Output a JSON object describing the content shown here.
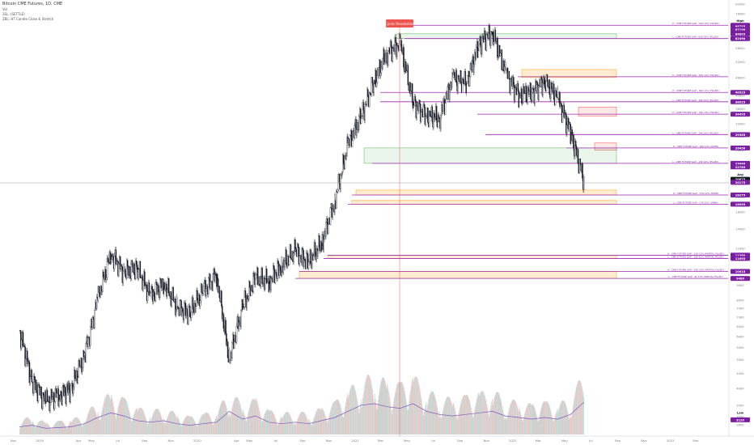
{
  "legend": {
    "title": "Bitcoin CME Futures, 1D, CME",
    "line2": "Vol",
    "line3": "3SL: (SETTLE)",
    "line4": "ZBL: HT Candle Close & Stretch"
  },
  "event_label": "Cycle Revelation",
  "chart_data": {
    "type": "line",
    "title": "Bitcoin CME Futures, 1D, CME",
    "y_scale": "log",
    "ylim": [
      3000,
      82000
    ],
    "x_ticks": [
      "Nov",
      "2019",
      "Apr",
      "May",
      "Jul",
      "Sep",
      "Nov",
      "2020",
      "Apr",
      "May",
      "Jul",
      "Sep",
      "Nov",
      "2021",
      "Mar",
      "May",
      "Jul",
      "Sep",
      "Nov",
      "2022",
      "Mar",
      "May",
      "Jul",
      "Sep",
      "Nov",
      "2023",
      "Mar"
    ],
    "y_ticks": [
      "82000",
      "76000",
      "70000",
      "64000",
      "58000",
      "52000",
      "46000",
      "40000",
      "36000",
      "32000",
      "29000",
      "26000",
      "23000",
      "20000",
      "18000",
      "16000",
      "14000",
      "12000",
      "11000",
      "10000",
      "9000",
      "8000",
      "7500",
      "7000",
      "6500",
      "6000",
      "5500",
      "5000",
      "4500",
      "4000",
      "3500",
      "3200",
      "3000"
    ],
    "price_tags": [
      "High",
      "69390",
      "68755",
      "67190",
      "65360",
      "64895",
      "62490",
      "40925",
      "38025",
      "34495",
      "29385",
      "26450",
      "23440",
      "22785",
      "Avg",
      "20675",
      "20175",
      "18275",
      "16995",
      "11380",
      "11095",
      "10015",
      "9480",
      "Low",
      "3120"
    ],
    "series": [
      {
        "name": "",
        "x": [
          "2018-11",
          "2018-12",
          "2019-01",
          "2019-02",
          "2019-03",
          "2019-04",
          "2019-05",
          "2019-06",
          "2019-07",
          "2019-08",
          "2019-09",
          "2019-10",
          "2019-11",
          "2019-12",
          "2020-01",
          "2020-02",
          "2020-03",
          "2020-04",
          "2020-05",
          "2020-06",
          "2020-07",
          "2020-08",
          "2020-09",
          "2020-10",
          "2020-11",
          "2020-12",
          "2021-01",
          "2021-02",
          "2021-03",
          "2021-04",
          "2021-05",
          "2021-06",
          "2021-07",
          "2021-08",
          "2021-09",
          "2021-10",
          "2021-11",
          "2021-12",
          "2022-01",
          "2022-02",
          "2022-03",
          "2022-04",
          "2022-05",
          "2022-06"
        ],
        "values": [
          6300,
          4200,
          3600,
          3800,
          4000,
          5200,
          8000,
          11500,
          10000,
          10300,
          8200,
          9200,
          7600,
          7200,
          8600,
          9800,
          5000,
          7600,
          9500,
          9300,
          10500,
          11800,
          10700,
          12500,
          17500,
          27000,
          34000,
          45000,
          56000,
          60000,
          38000,
          34000,
          33500,
          46000,
          44000,
          60000,
          66000,
          48000,
          40000,
          41000,
          45000,
          39000,
          30000,
          20500
        ]
      }
    ],
    "volume": [
      10,
      12,
      8,
      9,
      10,
      14,
      22,
      28,
      24,
      18,
      16,
      18,
      14,
      12,
      14,
      16,
      30,
      20,
      24,
      16,
      14,
      16,
      14,
      18,
      22,
      30,
      38,
      40,
      36,
      34,
      40,
      30,
      26,
      24,
      26,
      28,
      30,
      24,
      22,
      20,
      22,
      20,
      26,
      42
    ],
    "annotations": [
      {
        "label": "H - CME FUTURE GAP - 70K 12% (FILLED)",
        "price": 69390,
        "color": "#9c27b0"
      },
      {
        "label": "L - CME FUTURE GAP - 62K 10% (FILLED)",
        "price": 62490,
        "color": "#9c27b0"
      },
      {
        "label": "H - CME FUTURE GAP - 45K 12% (FILLED)",
        "price": 46300,
        "color": "#9c27b0"
      },
      {
        "label": "H - CME FUTURE GAP - 40K 11% (FILLED)",
        "price": 40925,
        "color": "#9c27b0"
      },
      {
        "label": "L - CME FUTURE GAP - 38K 10% (FILLED)",
        "price": 38025,
        "color": "#9c27b0"
      },
      {
        "label": "H - CME FUTURE GAP - 34K 10% (FILLED)",
        "price": 34495,
        "color": "#9c27b0"
      },
      {
        "label": "L - CME FUTURE GAP - 29K 10% (FILLED)",
        "price": 29385,
        "color": "#9c27b0"
      },
      {
        "label": "H - CME FUTURE GAP - 26K 10% (OPEN)",
        "price": 26450,
        "color": "#9c27b0"
      },
      {
        "label": "L - CME FUTURE GAP - 23K 10% (FILLED)",
        "price": 23440,
        "color": "#9c27b0"
      },
      {
        "label": "H - CME FUTURE GAP - 17K 10% (OPEN)",
        "price": 18275,
        "color": "#9c27b0"
      },
      {
        "label": "L - CME FUTURE GAP - 17K 10% (OPEN)",
        "price": 16995,
        "color": "#9c27b0"
      },
      {
        "label": "H - CME FUTURE GAP - 11K 12% (PARTIAL FILLED)",
        "price": 11380,
        "color": "#9c27b0"
      },
      {
        "label": "L - CME FUTURE GAP - 10K 10% (PARTIAL FILLED)",
        "price": 11095,
        "color": "#9c27b0"
      },
      {
        "label": "H - CME FUTURE GAP - 10K 10% (PARTIAL FILLED)",
        "price": 10015,
        "color": "#9c27b0"
      },
      {
        "label": "L - CME FUTURE GAP - 9K 10% (PARTIAL FILLED)",
        "price": 9480,
        "color": "#9c27b0"
      }
    ],
    "zones": [
      {
        "low": 62490,
        "high": 64895,
        "color": "#4caf50",
        "opacity": 0.12
      },
      {
        "low": 46000,
        "high": 49000,
        "color": "#ff9800",
        "opacity": 0.18
      },
      {
        "low": 34000,
        "high": 36500,
        "color": "#f44336",
        "opacity": 0.12
      },
      {
        "low": 26000,
        "high": 27500,
        "color": "#f44336",
        "opacity": 0.12
      },
      {
        "low": 23440,
        "high": 26450,
        "color": "#4caf50",
        "opacity": 0.12
      },
      {
        "low": 18275,
        "high": 19000,
        "color": "#ff9800",
        "opacity": 0.18
      },
      {
        "low": 16995,
        "high": 17500,
        "color": "#ff9800",
        "opacity": 0.18
      },
      {
        "low": 11095,
        "high": 11380,
        "color": "#ff9800",
        "opacity": 0.18
      },
      {
        "low": 9480,
        "high": 10015,
        "color": "#ff9800",
        "opacity": 0.18
      }
    ],
    "current_price": 20675,
    "event_date": "2021-04-14",
    "colors": {
      "candle_up": "#26a69a",
      "candle_down": "#ef5350",
      "gap_line": "#9c27b0",
      "price_tag_bg": "#7b1fa2",
      "event_line": "#ef5350",
      "event_label_bg": "#ef5350",
      "volume_ma": "#7e57c2",
      "crosshair": "#9e9e9e"
    },
    "grid": false,
    "legend_position": "top-left"
  }
}
